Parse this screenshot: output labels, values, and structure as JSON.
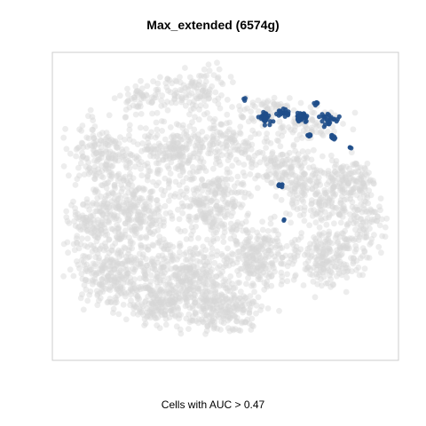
{
  "chart_data": {
    "type": "scatter",
    "title": "Max_extended (6574g)",
    "caption": "Cells with AUC > 0.47",
    "xlabel": "",
    "ylabel": "",
    "axes_ticks": false,
    "grid": false,
    "colors": {
      "background_cells": "#d8d8d8",
      "highlighted_cells": "#1f4e89",
      "frame": "#cccccc"
    },
    "highlight_clusters": [
      {
        "x": 275,
        "y": 112,
        "spread": 2,
        "n": 3
      },
      {
        "x": 298,
        "y": 133,
        "spread": 7,
        "n": 30
      },
      {
        "x": 320,
        "y": 127,
        "spread": 6,
        "n": 20
      },
      {
        "x": 340,
        "y": 133,
        "spread": 7,
        "n": 30
      },
      {
        "x": 357,
        "y": 117,
        "spread": 3,
        "n": 6
      },
      {
        "x": 349,
        "y": 152,
        "spread": 3,
        "n": 10
      },
      {
        "x": 370,
        "y": 135,
        "spread": 10,
        "n": 25
      },
      {
        "x": 375,
        "y": 155,
        "spread": 4,
        "n": 10
      },
      {
        "x": 394,
        "y": 166,
        "spread": 2,
        "n": 3
      },
      {
        "x": 316,
        "y": 209,
        "spread": 3,
        "n": 12
      },
      {
        "x": 320,
        "y": 248,
        "spread": 1,
        "n": 2
      }
    ]
  }
}
